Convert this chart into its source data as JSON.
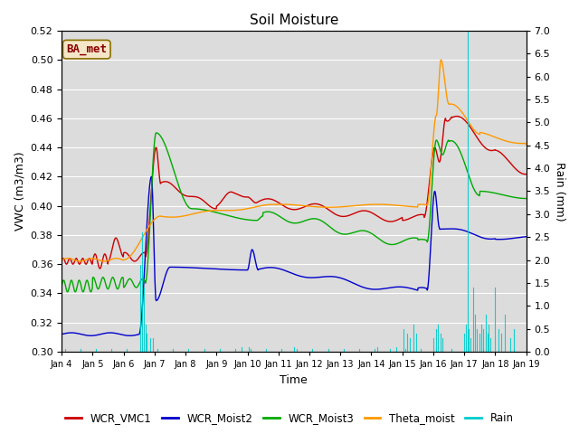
{
  "title": "Soil Moisture",
  "xlabel": "Time",
  "ylabel_left": "VWC (m3/m3)",
  "ylabel_right": "Rain (mm)",
  "ylim_left": [
    0.3,
    0.52
  ],
  "ylim_right": [
    0.0,
    7.0
  ],
  "yticks_left": [
    0.3,
    0.32,
    0.34,
    0.36,
    0.38,
    0.4,
    0.42,
    0.44,
    0.46,
    0.48,
    0.5,
    0.52
  ],
  "yticks_right": [
    0.0,
    0.5,
    1.0,
    1.5,
    2.0,
    2.5,
    3.0,
    3.5,
    4.0,
    4.5,
    5.0,
    5.5,
    6.0,
    6.5,
    7.0
  ],
  "xtick_labels": [
    "Jan 4",
    "Jan 5",
    "Jan 6",
    "Jan 7",
    "Jan 8",
    "Jan 9",
    "Jan 10",
    "Jan 11",
    "Jan 12",
    "Jan 13",
    "Jan 14",
    "Jan 15",
    "Jan 16",
    "Jan 17",
    "Jan 18",
    "Jan 19"
  ],
  "annotation_text": "BA_met",
  "annotation_box_facecolor": "#f5e6c8",
  "annotation_box_edgecolor": "#8b7000",
  "annotation_text_color": "#8b0000",
  "colors": {
    "WCR_VMC1": "#cc0000",
    "WCR_Moist2": "#0000cc",
    "WCR_Moist3": "#00aa00",
    "Theta_moist": "#ff9900",
    "Rain": "#00cccc"
  },
  "bg_color": "#dcdcdc",
  "grid_color": "#ffffff",
  "linewidth": 1.0
}
